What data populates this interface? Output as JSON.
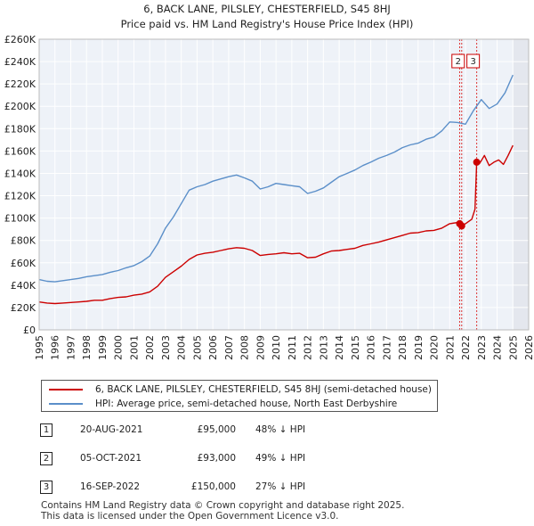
{
  "chart_data": {
    "type": "line",
    "title": "6, BACK LANE, PILSLEY, CHESTERFIELD, S45 8HJ",
    "subtitle": "Price paid vs. HM Land Registry's House Price Index (HPI)",
    "x_ticks": [
      "1995",
      "1996",
      "1997",
      "1998",
      "1999",
      "2000",
      "2001",
      "2002",
      "2003",
      "2004",
      "2005",
      "2006",
      "2007",
      "2008",
      "2009",
      "2010",
      "2011",
      "2012",
      "2013",
      "2014",
      "2015",
      "2016",
      "2017",
      "2018",
      "2019",
      "2020",
      "2021",
      "2022",
      "2023",
      "2024",
      "2025",
      "2026"
    ],
    "y_ticks": [
      "£0",
      "£20K",
      "£40K",
      "£60K",
      "£80K",
      "£100K",
      "£120K",
      "£140K",
      "£160K",
      "£180K",
      "£200K",
      "£220K",
      "£240K",
      "£260K"
    ],
    "xlim": [
      1995,
      2026
    ],
    "ylim": [
      0,
      260000
    ],
    "grid": true,
    "future_shade_from": 2025.0,
    "series": [
      {
        "name": "6, BACK LANE, PILSLEY, CHESTERFIELD, S45 8HJ (semi-detached house)",
        "color": "#cc0000",
        "x": [
          1995.0,
          1995.5,
          1996.0,
          1996.5,
          1997.0,
          1997.5,
          1998.0,
          1998.5,
          1999.0,
          1999.5,
          2000.0,
          2000.5,
          2001.0,
          2001.5,
          2002.0,
          2002.5,
          2003.0,
          2003.5,
          2004.0,
          2004.5,
          2005.0,
          2005.5,
          2006.0,
          2006.5,
          2007.0,
          2007.5,
          2008.0,
          2008.5,
          2009.0,
          2009.5,
          2010.0,
          2010.5,
          2011.0,
          2011.5,
          2012.0,
          2012.5,
          2013.0,
          2013.5,
          2014.0,
          2014.5,
          2015.0,
          2015.5,
          2016.0,
          2016.5,
          2017.0,
          2017.5,
          2018.0,
          2018.5,
          2019.0,
          2019.5,
          2020.0,
          2020.5,
          2021.0,
          2021.5,
          2021.63,
          2021.76,
          2022.0,
          2022.4,
          2022.6,
          2022.71,
          2022.9,
          2023.2,
          2023.5,
          2023.8,
          2024.1,
          2024.4,
          2024.7,
          2025.0
        ],
        "values": [
          25000,
          24000,
          23500,
          24000,
          24500,
          25000,
          25500,
          26500,
          26500,
          28000,
          29000,
          29500,
          31000,
          32000,
          34000,
          39000,
          47000,
          52000,
          57000,
          63000,
          67000,
          68500,
          69500,
          71000,
          72500,
          73500,
          73000,
          71000,
          66500,
          67500,
          68000,
          69000,
          68000,
          68500,
          64500,
          65000,
          68000,
          70500,
          71000,
          72000,
          73000,
          75500,
          77000,
          78500,
          80500,
          82500,
          84500,
          86500,
          87000,
          88500,
          89000,
          91000,
          95000,
          96000,
          95000,
          93000,
          95000,
          99000,
          108000,
          150000,
          149000,
          156000,
          147000,
          150000,
          152000,
          148000,
          156000,
          165000
        ]
      },
      {
        "name": "HPI: Average price, semi-detached house, North East Derbyshire",
        "color": "#5b8fc9",
        "x": [
          1995.0,
          1995.5,
          1996.0,
          1996.5,
          1997.0,
          1997.5,
          1998.0,
          1998.5,
          1999.0,
          1999.5,
          2000.0,
          2000.5,
          2001.0,
          2001.5,
          2002.0,
          2002.5,
          2003.0,
          2003.5,
          2004.0,
          2004.5,
          2005.0,
          2005.5,
          2006.0,
          2006.5,
          2007.0,
          2007.5,
          2008.0,
          2008.5,
          2009.0,
          2009.5,
          2010.0,
          2010.5,
          2011.0,
          2011.5,
          2012.0,
          2012.5,
          2013.0,
          2013.5,
          2014.0,
          2014.5,
          2015.0,
          2015.5,
          2016.0,
          2016.5,
          2017.0,
          2017.5,
          2018.0,
          2018.5,
          2019.0,
          2019.5,
          2020.0,
          2020.5,
          2021.0,
          2021.5,
          2022.0,
          2022.5,
          2023.0,
          2023.5,
          2024.0,
          2024.5,
          2025.0
        ],
        "values": [
          45000,
          43500,
          43000,
          44000,
          45000,
          46000,
          47500,
          48500,
          49500,
          51500,
          53000,
          55500,
          57500,
          61000,
          66000,
          77000,
          91000,
          101000,
          113000,
          125000,
          128000,
          130000,
          133000,
          135000,
          137000,
          138500,
          136000,
          133000,
          126000,
          128000,
          131000,
          130000,
          129000,
          128000,
          122000,
          124000,
          127000,
          132000,
          137000,
          140000,
          143000,
          147000,
          150000,
          153500,
          156000,
          159000,
          163000,
          165500,
          167000,
          170500,
          172500,
          178000,
          186000,
          185500,
          184000,
          196000,
          206000,
          198000,
          202000,
          212000,
          228000
        ]
      }
    ],
    "transactions": [
      {
        "num": "1",
        "date": "20-AUG-2021",
        "x": 2021.63,
        "price": "£95,000",
        "value": 95000,
        "hpi": "48% ↓ HPI"
      },
      {
        "num": "2",
        "date": "05-OCT-2021",
        "x": 2021.76,
        "price": "£93,000",
        "value": 93000,
        "hpi": "49% ↓ HPI"
      },
      {
        "num": "3",
        "date": "16-SEP-2022",
        "x": 2022.71,
        "price": "£150,000",
        "value": 150000,
        "hpi": "27% ↓ HPI"
      }
    ],
    "marker_labels": [
      "2",
      "3"
    ]
  },
  "footer": {
    "line1": "Contains HM Land Registry data © Crown copyright and database right 2025.",
    "line2": "This data is licensed under the Open Government Licence v3.0."
  }
}
